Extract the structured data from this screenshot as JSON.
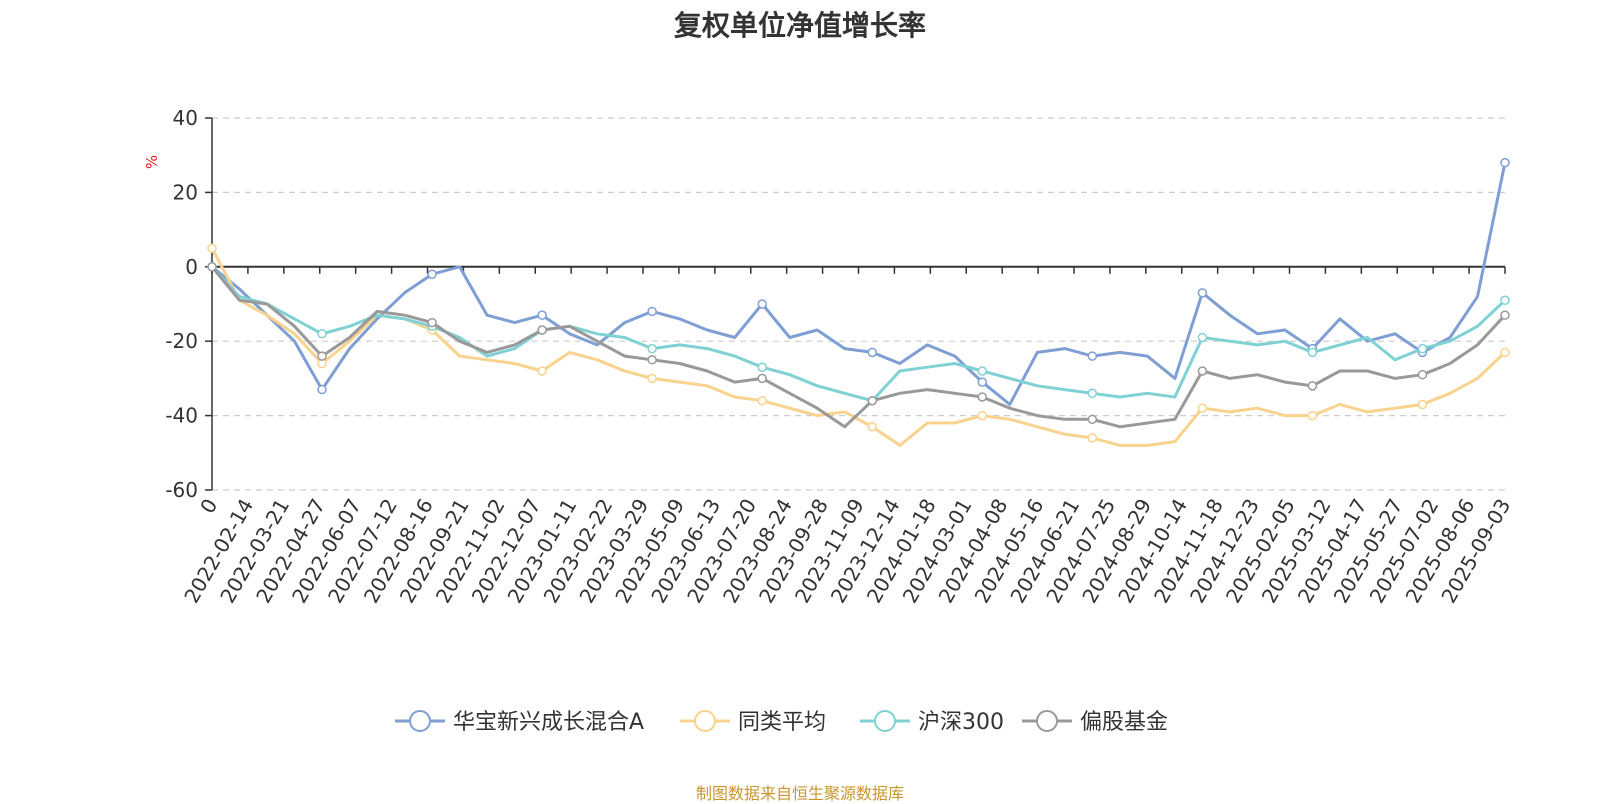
{
  "chart_data": {
    "type": "line",
    "title": "复权单位净值增长率",
    "ylabel": "%",
    "xlabel": "",
    "ylim": [
      -60,
      40
    ],
    "yticks": [
      40,
      20,
      0,
      -20,
      -40,
      -60
    ],
    "grid": true,
    "legend_position": "bottom-center",
    "x_tick_labels": [
      "0",
      "2022-02-14",
      "2022-03-21",
      "2022-04-27",
      "2022-06-07",
      "2022-07-12",
      "2022-08-16",
      "2022-09-21",
      "2022-11-02",
      "2022-12-07",
      "2023-01-11",
      "2023-02-22",
      "2023-03-29",
      "2023-05-09",
      "2023-06-13",
      "2023-07-20",
      "2023-08-24",
      "2023-09-28",
      "2023-11-09",
      "2023-12-14",
      "2024-01-18",
      "2024-03-01",
      "2024-04-08",
      "2024-05-16",
      "2024-06-21",
      "2024-07-25",
      "2024-08-29",
      "2024-10-14",
      "2024-11-18",
      "2024-12-23",
      "2025-02-05",
      "2025-03-12",
      "2025-04-17",
      "2025-05-27",
      "2025-07-02",
      "2025-08-06",
      "2025-09-03"
    ],
    "series": [
      {
        "name": "华宝新兴成长混合A",
        "color": "#7f9fd4",
        "values": [
          0,
          -6,
          -13,
          -20,
          -33,
          -22,
          -14,
          -7,
          -2,
          0,
          -13,
          -15,
          -13,
          -18,
          -21,
          -15,
          -12,
          -14,
          -17,
          -19,
          -10,
          -19,
          -17,
          -22,
          -23,
          -26,
          -21,
          -24,
          -31,
          -37,
          -23,
          -22,
          -24,
          -23,
          -24,
          -30,
          -7,
          -13,
          -18,
          -17,
          -22,
          -14,
          -20,
          -18,
          -23,
          -19,
          -8,
          28
        ]
      },
      {
        "name": "同类平均",
        "color": "#f9d38e",
        "values": [
          5,
          -9,
          -13,
          -18,
          -26,
          -20,
          -13,
          -14,
          -17,
          -24,
          -25,
          -26,
          -28,
          -23,
          -25,
          -28,
          -30,
          -31,
          -32,
          -35,
          -36,
          -38,
          -40,
          -39,
          -43,
          -48,
          -42,
          -42,
          -40,
          -41,
          -43,
          -45,
          -46,
          -48,
          -48,
          -47,
          -38,
          -39,
          -38,
          -40,
          -40,
          -37,
          -39,
          -38,
          -37,
          -34,
          -30,
          -23
        ]
      },
      {
        "name": "沪深300",
        "color": "#7fd1d4",
        "values": [
          0,
          -8,
          -10,
          -14,
          -18,
          -16,
          -13,
          -14,
          -16,
          -19,
          -24,
          -22,
          -17,
          -16,
          -18,
          -19,
          -22,
          -21,
          -22,
          -24,
          -27,
          -29,
          -32,
          -34,
          -36,
          -28,
          -27,
          -26,
          -28,
          -30,
          -32,
          -33,
          -34,
          -35,
          -34,
          -35,
          -19,
          -20,
          -21,
          -20,
          -23,
          -21,
          -19,
          -25,
          -22,
          -20,
          -16,
          -9
        ]
      },
      {
        "name": "偏股基金",
        "color": "#999999",
        "values": [
          0,
          -9,
          -10,
          -16,
          -24,
          -19,
          -12,
          -13,
          -15,
          -20,
          -23,
          -21,
          -17,
          -16,
          -20,
          -24,
          -25,
          -26,
          -28,
          -31,
          -30,
          -34,
          -38,
          -43,
          -36,
          -34,
          -33,
          -34,
          -35,
          -38,
          -40,
          -41,
          -41,
          -43,
          -42,
          -41,
          -28,
          -30,
          -29,
          -31,
          -32,
          -28,
          -28,
          -30,
          -29,
          -26,
          -21,
          -13
        ]
      }
    ]
  },
  "source_note": "制图数据来自恒生聚源数据库"
}
